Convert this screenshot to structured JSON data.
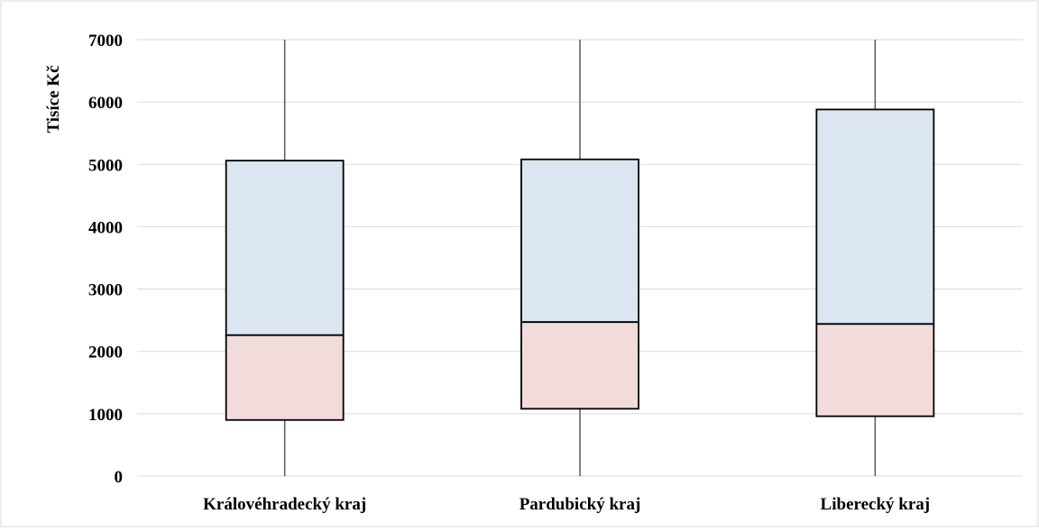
{
  "chart_data": {
    "type": "box",
    "ylabel": "Tisíce Kč",
    "xlabel": "",
    "ylim": [
      0,
      7000
    ],
    "yticks": [
      0,
      1000,
      2000,
      3000,
      4000,
      5000,
      6000,
      7000
    ],
    "yticklabels": [
      "0",
      "1000",
      "2000",
      "3000",
      "4000",
      "5000",
      "6000",
      "7000"
    ],
    "grid": true,
    "categories": [
      "Královéhradecký kraj",
      "Pardubický kraj",
      "Liberecký kraj"
    ],
    "boxes": [
      {
        "category": "Královéhradecký kraj",
        "whisker_low": 0,
        "q1": 900,
        "median": 2260,
        "q3": 5060,
        "whisker_high": 7000
      },
      {
        "category": "Pardubický kraj",
        "whisker_low": 0,
        "q1": 1080,
        "median": 2470,
        "q3": 5080,
        "whisker_high": 7000
      },
      {
        "category": "Liberecký kraj",
        "whisker_low": 0,
        "q1": 960,
        "median": 2440,
        "q3": 5880,
        "whisker_high": 7000
      }
    ],
    "colors": {
      "lower_box": "#f2dcdb",
      "upper_box": "#dce6f2",
      "gridline": "#d9d9d9",
      "whisker": "#595959",
      "box_border": "#000000"
    }
  }
}
